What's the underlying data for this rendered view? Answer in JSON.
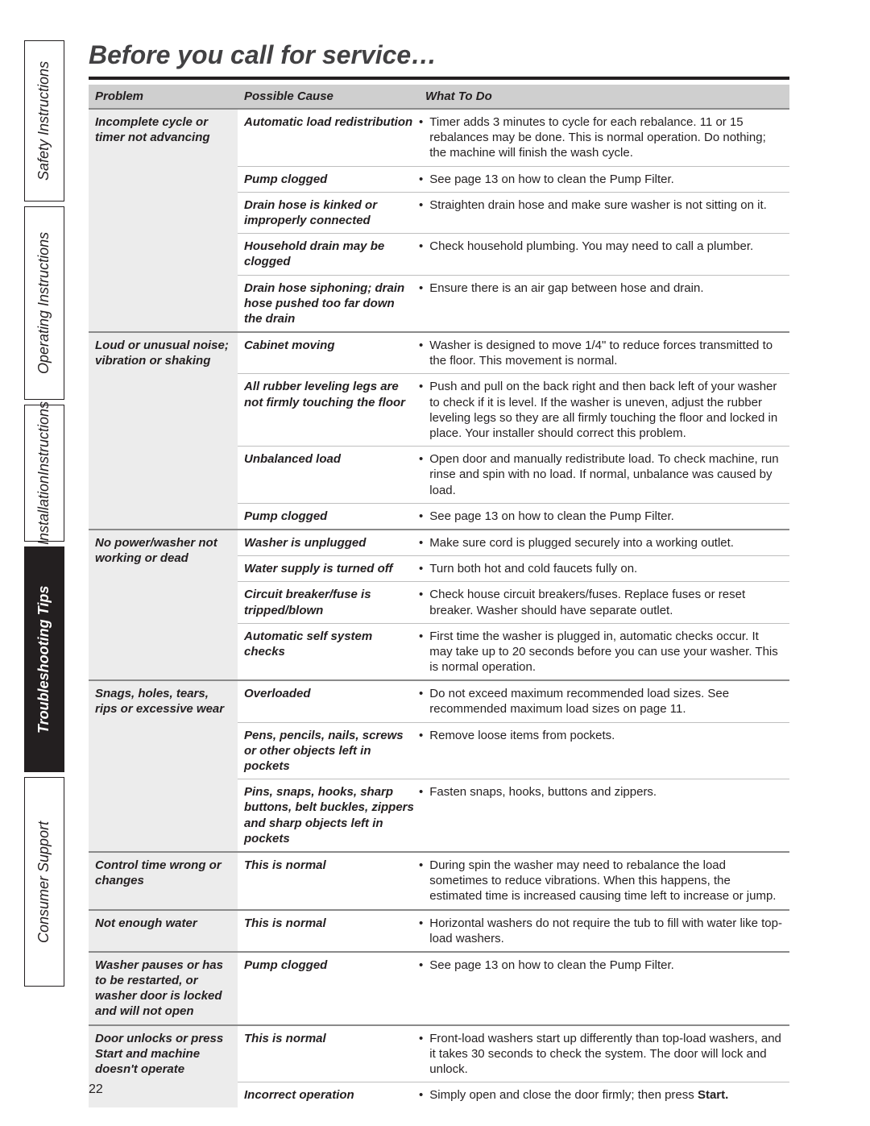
{
  "page_number": "22",
  "title": "Before you call for service…",
  "sidebar": {
    "tabs": [
      {
        "label": "Safety Instructions",
        "active": false
      },
      {
        "label": "Operating Instructions",
        "active": false
      },
      {
        "label_main": "Installation",
        "label_sub": "Instructions",
        "active": false
      },
      {
        "label": "Troubleshooting Tips",
        "active": true
      },
      {
        "label": "Consumer Support",
        "active": false
      }
    ]
  },
  "columns": {
    "problem": "Problem",
    "cause": "Possible Cause",
    "todo": "What To Do"
  },
  "groups": [
    {
      "problem": "Incomplete cycle or timer not advancing",
      "rows": [
        {
          "cause": "Automatic load redistribution",
          "todo": [
            "Timer adds 3 minutes to cycle for each rebalance. 11 or 15 rebalances may be done. This is normal operation. Do nothing; the machine will finish the wash cycle."
          ]
        },
        {
          "cause": "Pump clogged",
          "todo": [
            "See page 13 on how to clean the Pump Filter."
          ]
        },
        {
          "cause": "Drain hose is kinked or improperly connected",
          "todo": [
            "Straighten drain hose and make sure washer is not sitting on it."
          ]
        },
        {
          "cause": "Household drain may be clogged",
          "todo": [
            "Check household plumbing. You may need to call a plumber."
          ]
        },
        {
          "cause": "Drain hose siphoning; drain hose pushed too far down the drain",
          "todo": [
            "Ensure there is an air gap between hose and drain."
          ]
        }
      ]
    },
    {
      "problem": "Loud or unusual noise; vibration or shaking",
      "rows": [
        {
          "cause": "Cabinet moving",
          "todo": [
            "Washer is designed to move 1/4\" to reduce forces transmitted to the floor. This movement is normal."
          ]
        },
        {
          "cause": "All rubber leveling legs are not firmly touching the floor",
          "todo": [
            "Push and pull on the back right and then back left of your washer to check if it is level. If the washer is uneven, adjust the rubber leveling legs so they are all firmly touching the floor and locked in place. Your installer should correct this problem."
          ]
        },
        {
          "cause": "Unbalanced load",
          "todo": [
            "Open door and manually redistribute load. To check machine, run rinse and spin with no load. If normal, unbalance was caused by load."
          ]
        },
        {
          "cause": "Pump clogged",
          "todo": [
            "See page 13 on how to clean the Pump Filter."
          ]
        }
      ]
    },
    {
      "problem": "No power/washer not working or dead",
      "rows": [
        {
          "cause": "Washer is unplugged",
          "todo": [
            "Make sure cord is plugged securely into a working outlet."
          ]
        },
        {
          "cause": "Water supply is turned off",
          "todo": [
            "Turn both hot and cold faucets fully on."
          ]
        },
        {
          "cause": "Circuit breaker/fuse is tripped/blown",
          "todo": [
            "Check house circuit breakers/fuses. Replace fuses or reset breaker. Washer should have separate outlet."
          ]
        },
        {
          "cause": "Automatic self system checks",
          "todo": [
            "First time the washer is plugged in, automatic checks occur. It may take up to 20 seconds before you can use your washer. This is normal operation."
          ]
        }
      ]
    },
    {
      "problem": "Snags, holes, tears, rips or excessive wear",
      "rows": [
        {
          "cause": "Overloaded",
          "todo": [
            "Do not exceed maximum recommended load sizes. See recommended maximum load sizes on page 11."
          ]
        },
        {
          "cause": "Pens, pencils, nails, screws or other objects left in pockets",
          "todo": [
            "Remove loose items from pockets."
          ]
        },
        {
          "cause": "Pins, snaps, hooks, sharp buttons, belt buckles, zippers and sharp objects left in pockets",
          "todo": [
            "Fasten snaps, hooks, buttons and zippers."
          ]
        }
      ]
    },
    {
      "problem": "Control time wrong or changes",
      "rows": [
        {
          "cause": "This is normal",
          "todo": [
            "During spin the washer may need to rebalance the load sometimes to reduce vibrations. When this happens, the estimated time is increased causing time left to increase or jump."
          ]
        }
      ]
    },
    {
      "problem": "Not enough water",
      "rows": [
        {
          "cause": "This is normal",
          "todo": [
            "Horizontal washers do not require the tub to fill with water like top-load washers."
          ]
        }
      ]
    },
    {
      "problem": "Washer pauses or has to be restarted, or washer door is locked and will not open",
      "rows": [
        {
          "cause": "Pump clogged",
          "todo": [
            "See page 13 on how to clean the Pump Filter."
          ]
        }
      ]
    },
    {
      "problem": "Door unlocks or press Start and machine doesn't operate",
      "rows": [
        {
          "cause": "This is normal",
          "todo": [
            "Front-load washers start up differently than top-load washers, and it takes 30 seconds to check the system. The door will lock and unlock."
          ]
        },
        {
          "cause": "Incorrect operation",
          "todo_html": "Simply open and close the door firmly; then press <b>Start.</b>"
        }
      ]
    }
  ],
  "style": {
    "header_bg": "#cfcfcf",
    "problem_bg": "#ececec",
    "row_border": "#bfbfbf",
    "group_border": "#8a8a8a",
    "title_color": "#424143",
    "text_color": "#231f20",
    "active_tab_bg": "#231f20",
    "active_tab_fg": "#ffffff"
  }
}
